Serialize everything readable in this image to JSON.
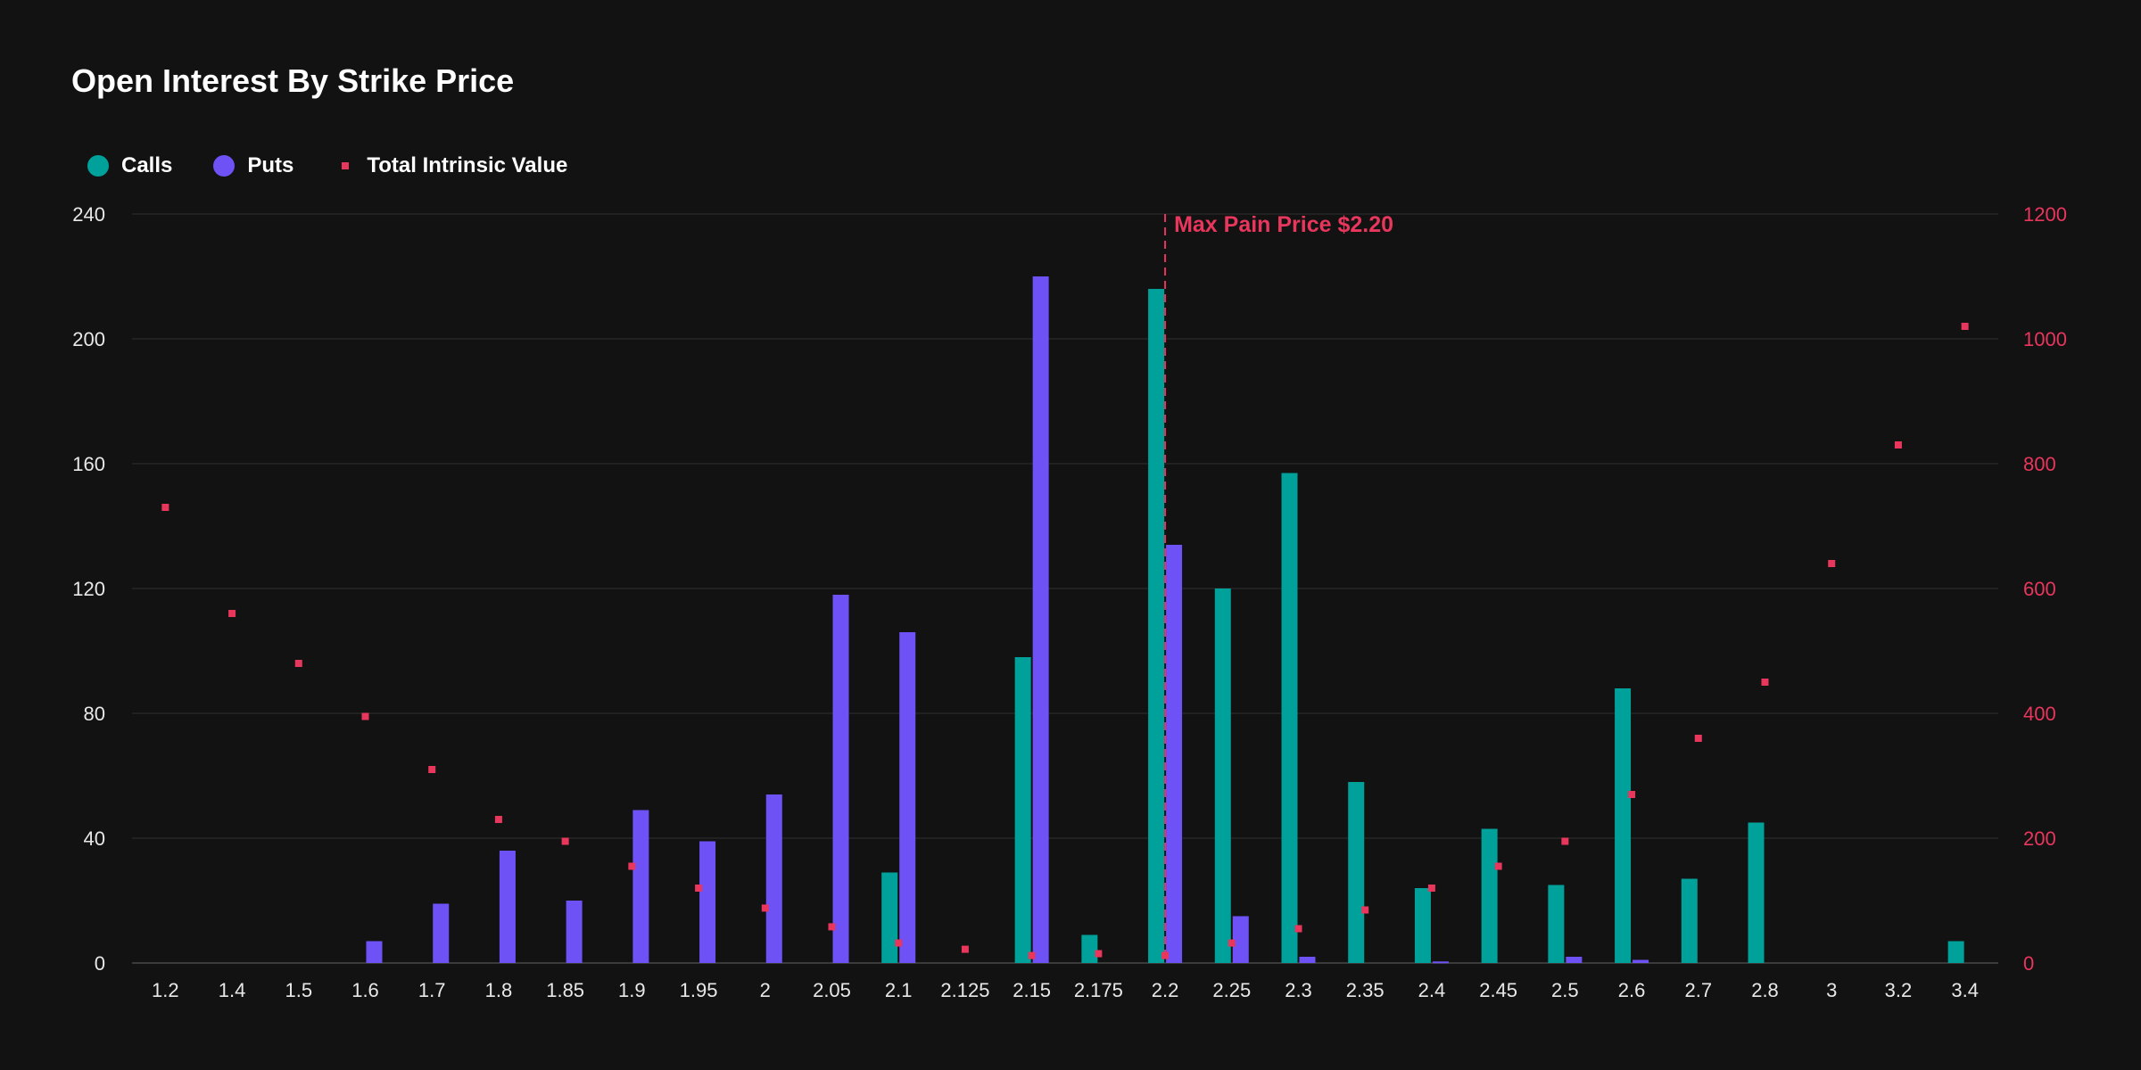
{
  "colors": {
    "background": "#121212",
    "calls": "#00a19a",
    "puts": "#6e52f5",
    "intrinsic": "#e8365d",
    "grid": "#262626",
    "axis": "#3a3a3a"
  },
  "chart_data": {
    "type": "bar",
    "title": "Open Interest By Strike Price",
    "categories": [
      "1.2",
      "1.4",
      "1.5",
      "1.6",
      "1.7",
      "1.8",
      "1.85",
      "1.9",
      "1.95",
      "2",
      "2.05",
      "2.1",
      "2.125",
      "2.15",
      "2.175",
      "2.2",
      "2.25",
      "2.3",
      "2.35",
      "2.4",
      "2.45",
      "2.5",
      "2.6",
      "2.7",
      "2.8",
      "3",
      "3.2",
      "3.4"
    ],
    "series": [
      {
        "name": "Calls",
        "axis": "left",
        "kind": "bar",
        "values": [
          0,
          0,
          0,
          0,
          0,
          0,
          0,
          0,
          0,
          0,
          0,
          29,
          0,
          98,
          9,
          216,
          120,
          157,
          58,
          24,
          43,
          25,
          88,
          27,
          45,
          0,
          0,
          7
        ]
      },
      {
        "name": "Puts",
        "axis": "left",
        "kind": "bar",
        "values": [
          0,
          0,
          0,
          7,
          19,
          36,
          20,
          49,
          39,
          54,
          118,
          106,
          0,
          220,
          0,
          134,
          15,
          2,
          0,
          0.5,
          0,
          2,
          1,
          0,
          0,
          0,
          0,
          0
        ]
      },
      {
        "name": "Total Intrinsic Value",
        "axis": "right",
        "kind": "scatter",
        "values": [
          730,
          560,
          480,
          395,
          310,
          230,
          195,
          155,
          120,
          88,
          58,
          32,
          22,
          12,
          15,
          12,
          32,
          55,
          85,
          120,
          155,
          195,
          270,
          360,
          450,
          640,
          830,
          1020
        ]
      }
    ],
    "yleft": {
      "min": 0,
      "max": 240,
      "ticks": [
        0,
        40,
        80,
        120,
        160,
        200,
        240
      ]
    },
    "yright": {
      "min": 0,
      "max": 1200,
      "ticks": [
        0,
        200,
        400,
        600,
        800,
        1000,
        1200
      ]
    },
    "annotation": {
      "label": "Max Pain Price $2.20",
      "category": "2.2"
    },
    "legend": {
      "placement": "top-left"
    },
    "grid": true
  }
}
